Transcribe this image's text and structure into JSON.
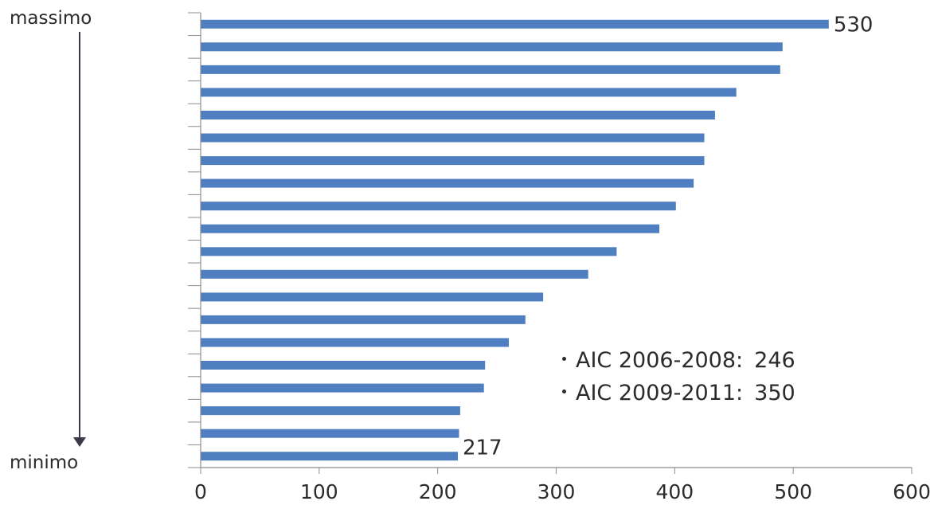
{
  "chart_data": {
    "type": "bar",
    "orientation": "horizontal",
    "values": [
      530,
      491,
      489,
      452,
      434,
      425,
      425,
      416,
      401,
      387,
      351,
      327,
      289,
      274,
      260,
      240,
      239,
      219,
      218,
      217
    ],
    "xlim": [
      0,
      600
    ],
    "x_ticks": [
      0,
      100,
      200,
      300,
      400,
      500,
      600
    ],
    "bar_color": "#4f7fc0",
    "data_labels": [
      {
        "index": 0,
        "text": "530"
      },
      {
        "index": 19,
        "text": "217"
      }
    ],
    "grid": false
  },
  "side_labels": {
    "top": "massimo",
    "bottom": "minimo"
  },
  "notes": [
    {
      "label": "AIC 2006-2008:",
      "value": "246"
    },
    {
      "label": "AIC 2009-2011:",
      "value": "350"
    }
  ]
}
